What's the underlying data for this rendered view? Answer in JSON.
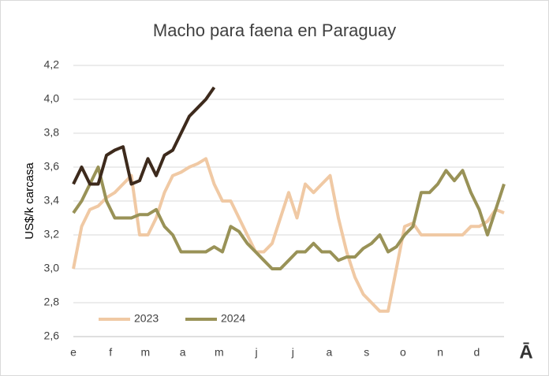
{
  "chart_data": {
    "type": "line",
    "title": "Macho para faena en Paraguay",
    "y_label": "US$/k carcasa",
    "logo": "Ā",
    "x": [
      0,
      1,
      2,
      3,
      4,
      5,
      6,
      7,
      8,
      9,
      10,
      11,
      12,
      13,
      14,
      15,
      16,
      17,
      18,
      19,
      20,
      21,
      22,
      23,
      24,
      25,
      26,
      27,
      28,
      29,
      30,
      31,
      32,
      33,
      34,
      35,
      36,
      37,
      38,
      39,
      40,
      41,
      42,
      43,
      44,
      45,
      46,
      47,
      48,
      49,
      50,
      51,
      52
    ],
    "xlim": [
      0,
      52
    ],
    "xticks": [
      {
        "value": 0,
        "label": "e"
      },
      {
        "value": 4.5,
        "label": "f"
      },
      {
        "value": 8.7,
        "label": "m"
      },
      {
        "value": 13.2,
        "label": "a"
      },
      {
        "value": 17.6,
        "label": "m"
      },
      {
        "value": 22.1,
        "label": "j"
      },
      {
        "value": 26.5,
        "label": "j"
      },
      {
        "value": 30.9,
        "label": "a"
      },
      {
        "value": 35.4,
        "label": "s"
      },
      {
        "value": 39.8,
        "label": "o"
      },
      {
        "value": 44.3,
        "label": "n"
      },
      {
        "value": 48.7,
        "label": "d"
      }
    ],
    "ylim": [
      2.6,
      4.2
    ],
    "yticks": [
      {
        "value": 2.6,
        "label": "2,6"
      },
      {
        "value": 2.8,
        "label": "2,8"
      },
      {
        "value": 3.0,
        "label": "3,0"
      },
      {
        "value": 3.2,
        "label": "3,2"
      },
      {
        "value": 3.4,
        "label": "3,4"
      },
      {
        "value": 3.6,
        "label": "3,6"
      },
      {
        "value": 3.8,
        "label": "3,8"
      },
      {
        "value": 4.0,
        "label": "4,0"
      },
      {
        "value": 4.2,
        "label": "4,2"
      }
    ],
    "grid": true,
    "legend": "bottom-left",
    "series": [
      {
        "name": "2023",
        "color": "#f0c9a4",
        "values": [
          3.0,
          3.25,
          3.35,
          3.37,
          3.42,
          3.45,
          3.5,
          3.55,
          3.2,
          3.2,
          3.3,
          3.45,
          3.55,
          3.57,
          3.6,
          3.62,
          3.65,
          3.5,
          3.4,
          3.4,
          3.3,
          3.2,
          3.1,
          3.1,
          3.15,
          3.3,
          3.45,
          3.3,
          3.5,
          3.45,
          3.5,
          3.55,
          3.3,
          3.1,
          2.95,
          2.85,
          2.8,
          2.75,
          2.75,
          3.0,
          3.25,
          3.27,
          3.2,
          3.2,
          3.2,
          3.2,
          3.2,
          3.2,
          3.25,
          3.25,
          3.28,
          3.35,
          3.33
        ]
      },
      {
        "name": "2024",
        "color": "#999257",
        "values": [
          3.33,
          3.4,
          3.5,
          3.6,
          3.4,
          3.3,
          3.3,
          3.3,
          3.32,
          3.32,
          3.35,
          3.25,
          3.2,
          3.1,
          3.1,
          3.1,
          3.1,
          3.13,
          3.1,
          3.25,
          3.22,
          3.15,
          3.1,
          3.05,
          3.0,
          3.0,
          3.05,
          3.1,
          3.1,
          3.15,
          3.1,
          3.1,
          3.05,
          3.07,
          3.07,
          3.12,
          3.15,
          3.2,
          3.1,
          3.13,
          3.2,
          3.25,
          3.45,
          3.45,
          3.5,
          3.58,
          3.52,
          3.58,
          3.45,
          3.35,
          3.2,
          3.35,
          3.5
        ]
      },
      {
        "color": "#3d2a1c",
        "values": [
          3.5,
          3.6,
          3.5,
          3.5,
          3.67,
          3.7,
          3.72,
          3.5,
          3.52,
          3.65,
          3.55,
          3.67,
          3.7,
          3.8,
          3.9,
          3.95,
          4.0,
          4.07,
          null,
          null,
          null,
          null,
          null,
          null,
          null,
          null,
          null,
          null,
          null,
          null,
          null,
          null,
          null,
          null,
          null,
          null,
          null,
          null,
          null,
          null,
          null,
          null,
          null,
          null,
          null,
          null,
          null,
          null,
          null,
          null,
          null,
          null,
          null
        ]
      }
    ]
  }
}
